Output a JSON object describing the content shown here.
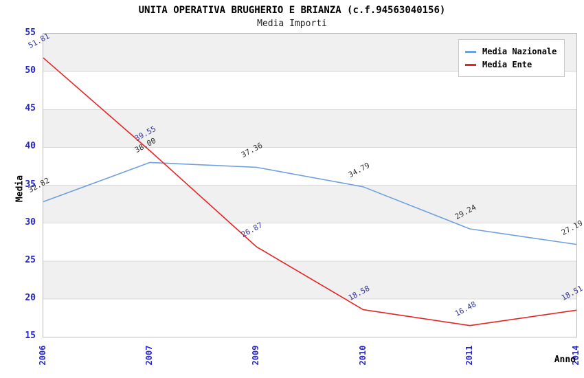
{
  "header": {
    "title": "UNITA OPERATIVA BRUGHERIO E BRIANZA (c.f.94563040156)",
    "subtitle": "Media Importi"
  },
  "axes": {
    "y_title": "Media",
    "x_title": "Anno",
    "tick_color": "#2626cc"
  },
  "legend": {
    "items": [
      {
        "label": "Media Nazionale",
        "color": "#6fa0de"
      },
      {
        "label": "Media Ente",
        "color": "#e52525"
      }
    ]
  },
  "chart_data": {
    "type": "line",
    "title": "UNITA OPERATIVA BRUGHERIO E BRIANZA (c.f.94563040156)",
    "subtitle": "Media Importi",
    "xlabel": "Anno",
    "ylabel": "Media",
    "categories": [
      "2006",
      "2007",
      "2009",
      "2010",
      "2011",
      "2014"
    ],
    "series": [
      {
        "name": "Media Nazionale",
        "color": "#6fa0de",
        "label_color": "#333333",
        "values": [
          32.82,
          38.0,
          37.36,
          34.79,
          29.24,
          27.19
        ]
      },
      {
        "name": "Media Ente",
        "color": "#e52525",
        "label_color": "#333399",
        "values": [
          51.81,
          39.55,
          26.87,
          18.58,
          16.48,
          18.51
        ]
      }
    ],
    "ylim": [
      15,
      55
    ],
    "yticks": [
      15,
      20,
      25,
      30,
      35,
      40,
      45,
      50,
      55
    ],
    "grid": true,
    "band_fill": "#f0f0f0",
    "gridline_color": "#d9d9d9",
    "point_labels": true,
    "legend_position": "top-right"
  }
}
